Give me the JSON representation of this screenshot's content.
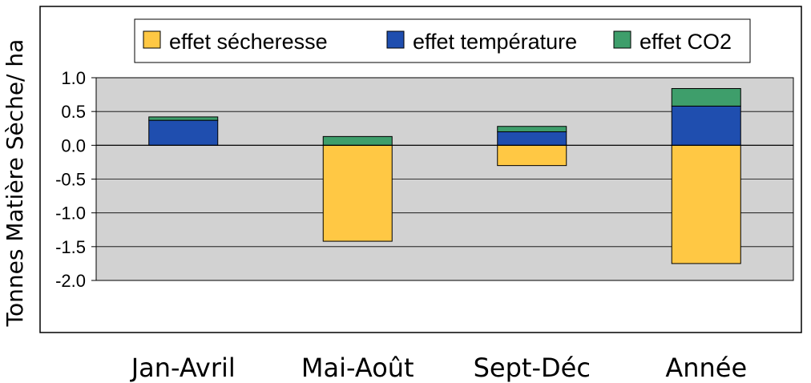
{
  "chart_data": {
    "type": "bar",
    "stacked": true,
    "title": "",
    "ylabel": "Tonnes Matière Sèche/ ha",
    "xlabel": "",
    "categories": [
      "Jan-Avril",
      "Mai-Août",
      "Sept-Déc",
      "Année"
    ],
    "ylim": [
      -2.0,
      1.0
    ],
    "yticks": [
      "1.0",
      "0.5",
      "0.0",
      "-0.5",
      "-1.0",
      "-1.5",
      "-2.0"
    ],
    "grid": true,
    "legend_position": "top",
    "series": [
      {
        "name": "effet sécheresse",
        "color": "#FFC844",
        "values": [
          0.0,
          -1.42,
          -0.3,
          -1.75
        ]
      },
      {
        "name": "effet température",
        "color": "#1F4EAF",
        "values": [
          0.37,
          0.0,
          0.2,
          0.58
        ]
      },
      {
        "name": "effet CO2",
        "color": "#3E9E6B",
        "values": [
          0.05,
          0.13,
          0.08,
          0.26
        ]
      }
    ]
  }
}
